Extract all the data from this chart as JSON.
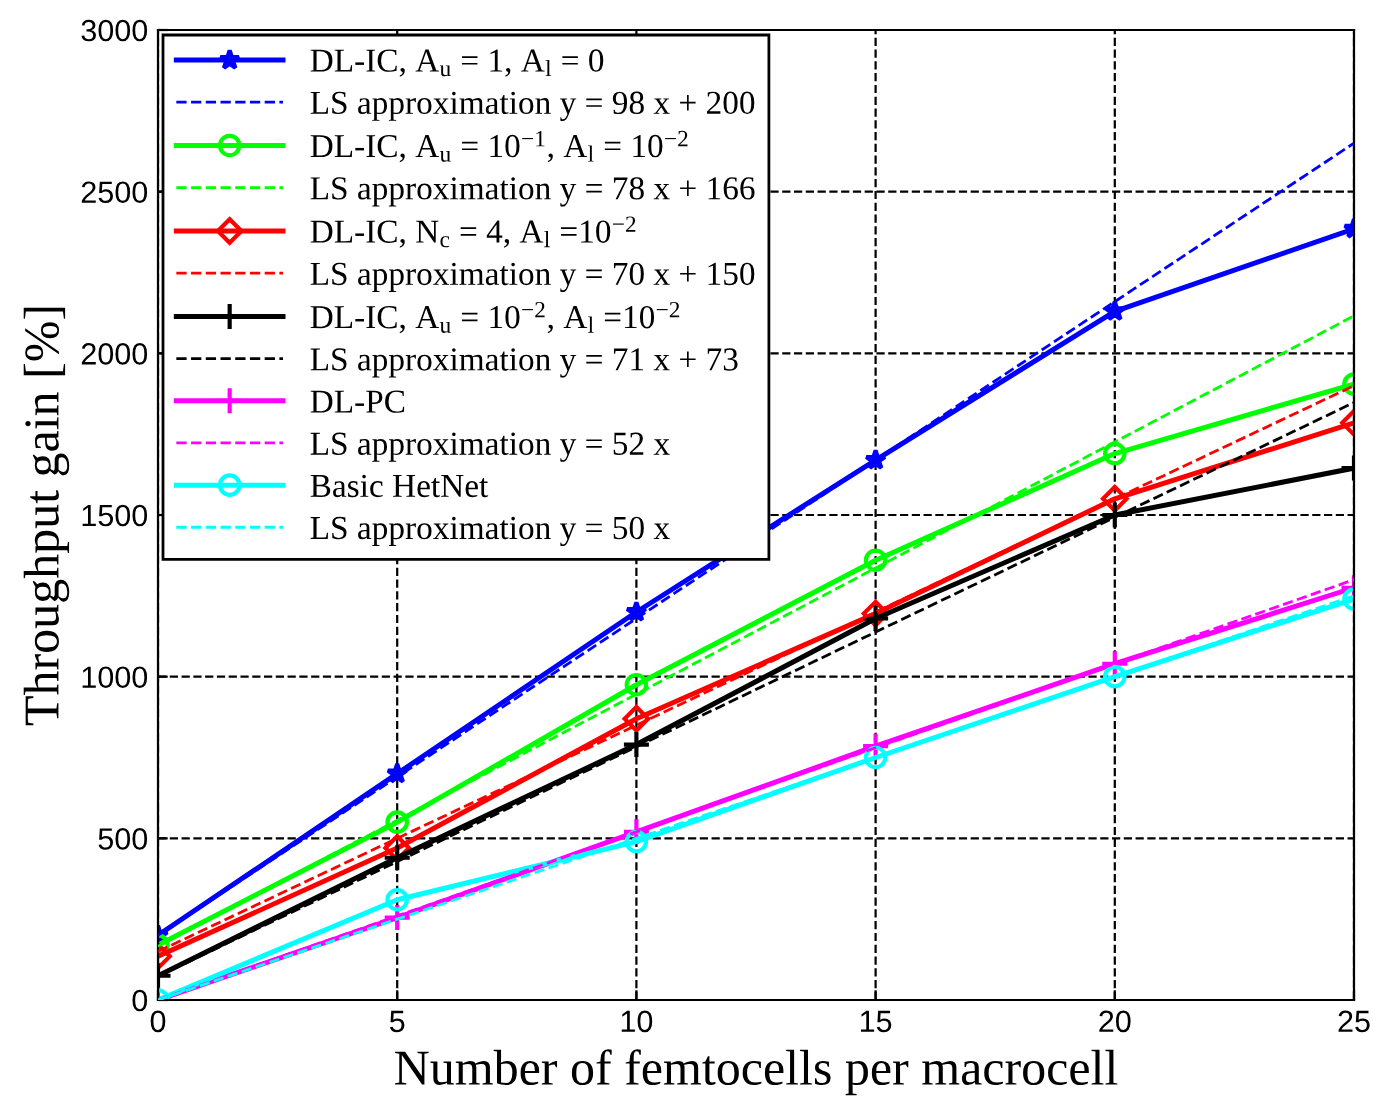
{
  "chart_data": {
    "type": "line",
    "xlabel": "Number of femtocells per macrocell",
    "ylabel": "Throughput gain [%]",
    "xlim": [
      0,
      25
    ],
    "xticks": [
      0,
      5,
      10,
      15,
      20,
      25
    ],
    "ylim": [
      0,
      3000
    ],
    "yticks": [
      0,
      500,
      1000,
      1500,
      2000,
      2500,
      3000
    ],
    "grid": true,
    "legend": "top left",
    "x": [
      0,
      5,
      10,
      15,
      20,
      25
    ],
    "series": [
      {
        "name": "DL-IC, A$_{u}$ = 1, A$_{l}$ = 0",
        "color": "#0000ff",
        "marker": "star",
        "line_style": "solid",
        "values": [
          200,
          700,
          1200,
          1670,
          2130,
          2385
        ]
      },
      {
        "name": "LS approximation y = 98 x + 200",
        "color": "#0000ff",
        "marker": "none",
        "line_style": "dashed",
        "values": [
          200,
          690,
          1180,
          1670,
          2160,
          2650
        ]
      },
      {
        "name": "DL-IC, A$_{u}$ = 10$^{−1}$, A$_{l}$ = 10$^{−2}$",
        "color": "#00ff00",
        "marker": "circle",
        "line_style": "solid",
        "values": [
          170,
          550,
          975,
          1360,
          1690,
          1905
        ]
      },
      {
        "name": "LS approximation y = 78 x + 166",
        "color": "#00ff00",
        "marker": "none",
        "line_style": "dashed",
        "values": [
          166,
          556,
          946,
          1336,
          1726,
          2116
        ]
      },
      {
        "name": "DL-IC, N$_{c}$ = 4, A$_{l}$ =10$^{−2}$",
        "color": "#ff0000",
        "marker": "diamond",
        "line_style": "solid",
        "values": [
          135,
          470,
          870,
          1195,
          1550,
          1785
        ]
      },
      {
        "name": "LS approximation y = 70 x + 150",
        "color": "#ff0000",
        "marker": "none",
        "line_style": "dashed",
        "values": [
          150,
          500,
          850,
          1200,
          1550,
          1900
        ]
      },
      {
        "name": "DL-IC, A$_{u}$ = 10$^{−2}$, A$_{l}$ =10$^{−2}$",
        "color": "#000000",
        "marker": "cross",
        "line_style": "solid",
        "values": [
          75,
          440,
          790,
          1180,
          1500,
          1645
        ]
      },
      {
        "name": "LS approximation y = 71 x + 73",
        "color": "#000000",
        "marker": "none",
        "line_style": "dashed",
        "values": [
          73,
          428,
          783,
          1138,
          1493,
          1848
        ]
      },
      {
        "name": "DL-PC",
        "color": "#ff00ff",
        "marker": "cross",
        "line_style": "solid",
        "values": [
          0,
          255,
          520,
          785,
          1040,
          1275
        ]
      },
      {
        "name": "LS approximation y = 52 x",
        "color": "#ff00ff",
        "marker": "none",
        "line_style": "dashed",
        "values": [
          0,
          260,
          520,
          780,
          1040,
          1300
        ]
      },
      {
        "name": "Basic HetNet",
        "color": "#00ffff",
        "marker": "circle",
        "line_style": "solid",
        "values": [
          0,
          310,
          490,
          750,
          1000,
          1240
        ]
      },
      {
        "name": "LS approximation y = 50 x",
        "color": "#00ffff",
        "marker": "none",
        "line_style": "dashed",
        "values": [
          0,
          250,
          500,
          750,
          1000,
          1250
        ]
      }
    ]
  }
}
